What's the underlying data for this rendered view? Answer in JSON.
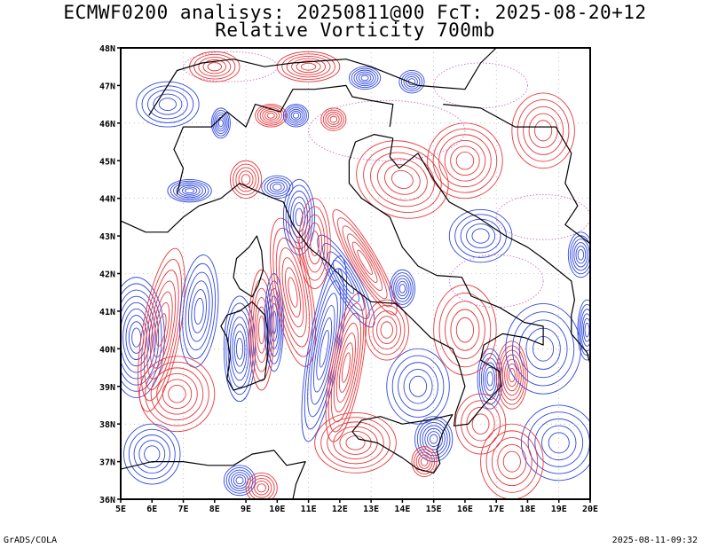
{
  "header": {
    "title_line1": "ECMWF0200 analisys: 20250811@00 FcT: 2025-08-20+12",
    "title_line2": "Relative Vorticity 700mb"
  },
  "map": {
    "lon_range": [
      5,
      20
    ],
    "lat_range": [
      36,
      48
    ],
    "lon_ticks": [
      "5E",
      "6E",
      "7E",
      "8E",
      "9E",
      "10E",
      "11E",
      "12E",
      "13E",
      "14E",
      "15E",
      "16E",
      "17E",
      "18E",
      "19E",
      "20E"
    ],
    "lat_ticks": [
      "36N",
      "37N",
      "38N",
      "39N",
      "40N",
      "41N",
      "42N",
      "43N",
      "44N",
      "45N",
      "46N",
      "47N",
      "48N"
    ],
    "colors": {
      "positive_contour": "#e8383c",
      "negative_contour": "#3048e0",
      "zero_contour": "#d070c0",
      "coastline": "#000000",
      "frame": "#000000"
    },
    "grid": "dotted"
  },
  "footer": {
    "left": "GrADS/COLA",
    "right": "2025-08-11-09:32"
  }
}
